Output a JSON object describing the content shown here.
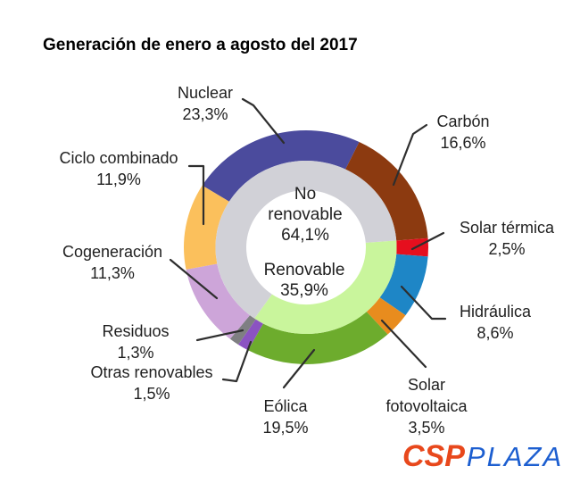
{
  "title": "Generación de enero a agosto del 2017",
  "chart_data": {
    "type": "pie",
    "subtype": "nested-donut",
    "title": "Generación de enero a agosto del 2017",
    "unit": "%",
    "rotation_deg": -58.1,
    "outer_ring": {
      "segments": [
        {
          "name": "Nuclear",
          "value": 23.3,
          "value_label": "23,3%",
          "color": "#4b4b9d"
        },
        {
          "name": "Carbón",
          "value": 16.6,
          "value_label": "16,6%",
          "color": "#8c3a10"
        },
        {
          "name": "Solar térmica",
          "value": 2.5,
          "value_label": "2,5%",
          "color": "#e60f1e"
        },
        {
          "name": "Hidráulica",
          "value": 8.6,
          "value_label": "8,6%",
          "color": "#1e86c6"
        },
        {
          "name": "Solar fotovoltaica",
          "value": 3.5,
          "value_label": "3,5%",
          "color": "#e88c1e"
        },
        {
          "name": "Eólica",
          "value": 19.5,
          "value_label": "19,5%",
          "color": "#6dac2d"
        },
        {
          "name": "Otras renovables",
          "value": 1.5,
          "value_label": "1,5%",
          "color": "#8b53c2"
        },
        {
          "name": "Residuos",
          "value": 1.3,
          "value_label": "1,3%",
          "color": "#7f7f82"
        },
        {
          "name": "Cogeneración",
          "value": 11.3,
          "value_label": "11,3%",
          "color": "#cda5d9"
        },
        {
          "name": "Ciclo combinado",
          "value": 11.9,
          "value_label": "11,9%",
          "color": "#fbc05c"
        }
      ]
    },
    "inner_ring": {
      "start_deg": 85.5,
      "segments": [
        {
          "name": "Renovable",
          "value": 35.9,
          "value_label": "35,9%",
          "color": "#c9f59c"
        },
        {
          "name": "No renovable",
          "value": 64.1,
          "value_label": "64,1%",
          "color": "#d1d1d7"
        }
      ]
    }
  },
  "logo": {
    "csp_text": "CSP",
    "plaza_text": "PLAZA",
    "csp_color": "#e8481c",
    "plaza_color": "#1c5ed0"
  }
}
